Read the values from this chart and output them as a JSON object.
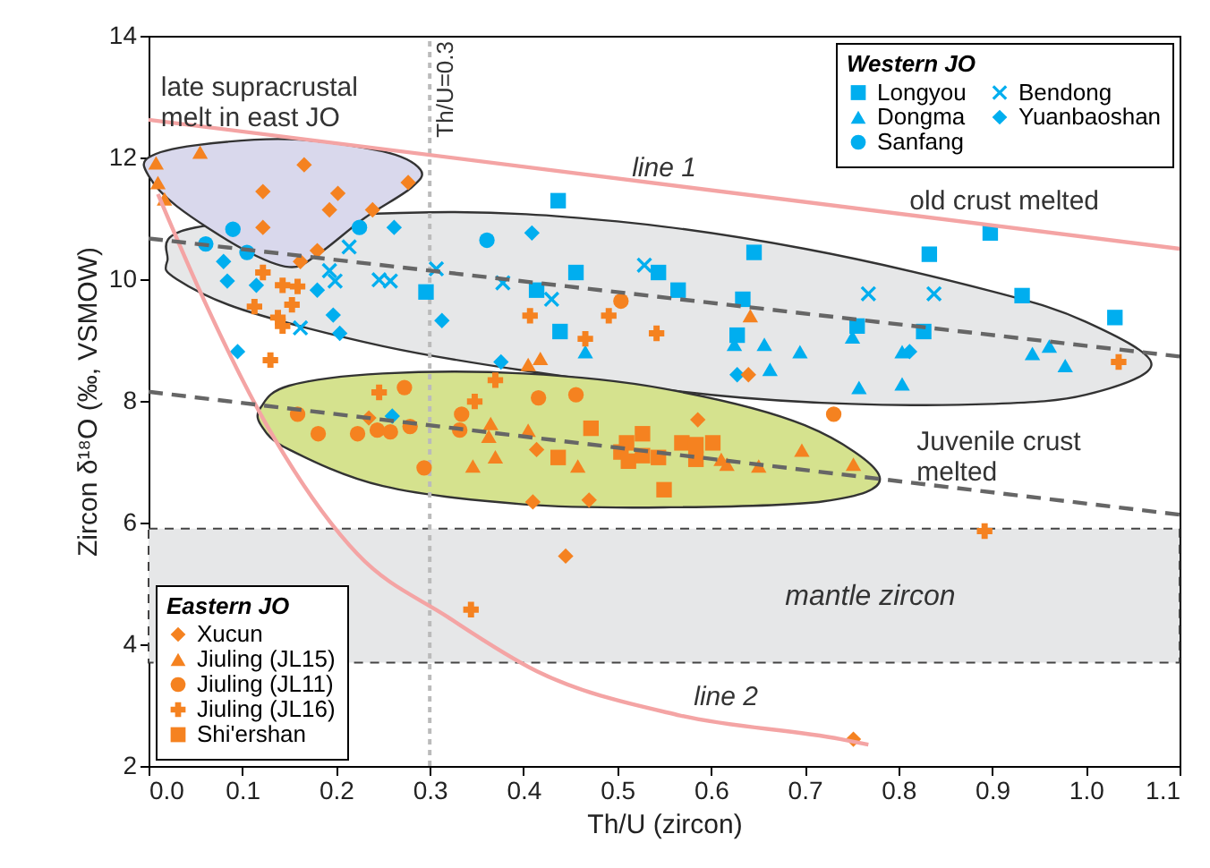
{
  "chart_data": {
    "type": "scatter",
    "xlabel": "Th/U (zircon)",
    "ylabel": "Zircon δ¹⁸O (‰, VSMOW)",
    "xlim": [
      0,
      1.1
    ],
    "xticks": [
      {
        "value": 0,
        "label": "0.0"
      },
      0.1,
      0.2,
      0.3,
      0.4,
      0.5,
      0.6,
      0.7,
      0.8,
      0.9,
      {
        "value": 1,
        "label": "1.0"
      },
      1.1
    ],
    "ylim": [
      2,
      14
    ],
    "yticks": [
      2,
      4,
      6,
      8,
      10,
      12,
      14
    ],
    "grid": false,
    "legend": [
      "top right",
      "bottom left"
    ],
    "legend_title": [
      "Western JO",
      "Eastern JO"
    ],
    "bands": [
      {
        "axis": "y",
        "from": 3.7,
        "to": 5.9,
        "label": "mantle zircon",
        "color": "#e6e7e8"
      }
    ],
    "ref_lines": [
      {
        "axis": "x",
        "value": 0.3,
        "label": "Th/U=0.3",
        "color": "#bbbbbb",
        "line_style": "dotted"
      }
    ],
    "annotations": [
      "late supracrustal\nmelt in east JO",
      "line 1",
      "old crust melted",
      "Juvenile crust\nmelted",
      "line 2"
    ],
    "series": [
      {
        "type": "area",
        "color": "#e6e7e8",
        "x": [
          0.05,
          0.3,
          0.5,
          0.7,
          0.9,
          1.0,
          1.07,
          1.0,
          0.9,
          0.75,
          0.6,
          0.4,
          0.25,
          0.1,
          0.03,
          0.02
        ],
        "values": [
          10.85,
          11.1,
          10.95,
          10.5,
          9.8,
          9.3,
          8.6,
          8.1,
          7.95,
          7.95,
          8.1,
          8.5,
          8.9,
          9.5,
          10.0,
          10.3
        ]
      },
      {
        "type": "area",
        "color": "#d9d8ec",
        "x": [
          0.0,
          0.05,
          0.15,
          0.25,
          0.29,
          0.28,
          0.23,
          0.18,
          0.15,
          0.1,
          0.03,
          0.0
        ],
        "values": [
          12.0,
          12.2,
          12.3,
          12.1,
          11.8,
          11.5,
          11.0,
          10.4,
          10.2,
          10.5,
          11.2,
          11.7
        ]
      },
      {
        "type": "area",
        "color": "#d5e28e",
        "x": [
          0.12,
          0.15,
          0.25,
          0.4,
          0.55,
          0.7,
          0.78,
          0.72,
          0.55,
          0.4,
          0.25,
          0.15,
          0.12
        ],
        "values": [
          7.9,
          8.25,
          8.45,
          8.45,
          8.2,
          7.6,
          6.75,
          6.35,
          6.25,
          6.3,
          6.6,
          7.2,
          7.6
        ]
      },
      {
        "type": "line",
        "color": "#f4a4a4",
        "line_style": "solid",
        "x": [
          0,
          1.1
        ],
        "values": [
          12.62,
          10.5
        ]
      },
      {
        "type": "line",
        "color": "#f4a4a4",
        "line_style": "solid",
        "x": [
          0.01,
          0.052,
          0.128,
          0.223,
          0.319,
          0.414,
          0.567,
          0.739,
          0.768
        ],
        "values": [
          11.4,
          9.9,
          7.55,
          5.48,
          4.45,
          3.56,
          2.83,
          2.44,
          2.35
        ]
      },
      {
        "type": "line",
        "color": "#666666",
        "line_style": "dashed",
        "x": [
          0,
          1.1
        ],
        "values": [
          10.67,
          8.73
        ]
      },
      {
        "type": "line",
        "color": "#666666",
        "line_style": "dashed",
        "x": [
          0,
          1.1
        ],
        "values": [
          8.15,
          6.13
        ]
      },
      {
        "name": "Longyou",
        "marker": "square",
        "color": "#00aeef",
        "x": [
          0.437,
          0.456,
          0.414,
          0.296,
          0.439,
          0.646,
          0.544,
          0.565,
          0.634,
          0.628,
          0.756,
          0.827,
          0.833,
          0.898,
          0.932,
          1.031
        ],
        "values": [
          11.29,
          10.11,
          9.82,
          9.79,
          9.14,
          10.44,
          10.11,
          9.82,
          9.67,
          9.08,
          9.23,
          9.14,
          10.41,
          10.76,
          9.73,
          9.37
        ]
      },
      {
        "name": "Dongma",
        "marker": "triangle",
        "color": "#00aeef",
        "x": [
          0.466,
          0.657,
          0.625,
          0.695,
          0.663,
          0.751,
          0.758,
          0.804,
          0.804,
          0.943,
          0.961,
          0.978
        ],
        "values": [
          8.81,
          8.93,
          8.93,
          8.81,
          8.52,
          9.05,
          8.22,
          8.28,
          8.81,
          8.78,
          8.9,
          8.58
        ]
      },
      {
        "name": "Sanfang",
        "marker": "circle",
        "color": "#00aeef",
        "x": [
          0.061,
          0.09,
          0.105,
          0.225,
          0.361
        ],
        "values": [
          10.58,
          10.82,
          10.44,
          10.85,
          10.64
        ]
      },
      {
        "name": "Bendong",
        "marker": "x",
        "color": "#00aeef",
        "x": [
          0.214,
          0.193,
          0.199,
          0.246,
          0.258,
          0.307,
          0.378,
          0.43,
          0.162,
          0.529,
          0.768,
          0.838
        ],
        "values": [
          10.53,
          10.14,
          9.97,
          9.99,
          9.97,
          10.17,
          9.94,
          9.67,
          9.2,
          10.23,
          9.76,
          9.76
        ]
      },
      {
        "name": "Yuanbaoshan",
        "marker": "diamond",
        "color": "#00aeef",
        "x": [
          0.262,
          0.409,
          0.08,
          0.084,
          0.115,
          0.18,
          0.197,
          0.204,
          0.313,
          0.095,
          0.376,
          0.26,
          0.628,
          0.812
        ],
        "values": [
          10.85,
          10.76,
          10.29,
          9.97,
          9.9,
          9.82,
          9.41,
          9.11,
          9.32,
          8.81,
          8.64,
          7.75,
          8.43,
          8.81
        ]
      },
      {
        "name": "Xucun",
        "marker": "diamond",
        "color": "#f58220",
        "x": [
          0.166,
          0.122,
          0.202,
          0.277,
          0.193,
          0.239,
          0.122,
          0.18,
          0.162,
          0.235,
          0.414,
          0.41,
          0.64,
          0.586,
          0.47,
          0.445,
          0.752
        ],
        "values": [
          11.88,
          11.44,
          11.41,
          11.59,
          11.14,
          11.14,
          10.85,
          10.47,
          10.29,
          7.72,
          7.2,
          6.34,
          8.43,
          7.69,
          6.37,
          5.45,
          2.44
        ]
      },
      {
        "name": "Jiuling (JL15)",
        "marker": "triangle",
        "color": "#f58220",
        "x": [
          0.055,
          0.008,
          0.01,
          0.017,
          0.405,
          0.418,
          0.365,
          0.363,
          0.405,
          0.37,
          0.346,
          0.458,
          0.642,
          0.611,
          0.651,
          0.697,
          0.752,
          0.617
        ],
        "values": [
          12.09,
          11.91,
          11.59,
          11.32,
          8.6,
          8.7,
          7.63,
          7.42,
          7.52,
          7.08,
          6.93,
          6.93,
          9.4,
          7.04,
          6.93,
          7.19,
          6.96,
          6.96
        ]
      },
      {
        "name": "Jiuling (JL11)",
        "marker": "circle",
        "color": "#f58220",
        "x": [
          0.273,
          0.159,
          0.181,
          0.223,
          0.244,
          0.258,
          0.279,
          0.294,
          0.334,
          0.332,
          0.416,
          0.456,
          0.504,
          0.731
        ],
        "values": [
          8.22,
          7.78,
          7.46,
          7.46,
          7.52,
          7.49,
          7.58,
          6.9,
          7.78,
          7.52,
          8.05,
          8.1,
          9.64,
          7.78
        ]
      },
      {
        "name": "Jiuling (JL16)",
        "marker": "cross",
        "color": "#f58220",
        "x": [
          0.122,
          0.143,
          0.159,
          0.113,
          0.153,
          0.138,
          0.143,
          0.13,
          0.246,
          0.348,
          0.37,
          0.407,
          0.466,
          0.491,
          0.542,
          1.035,
          0.892,
          0.344
        ],
        "values": [
          10.11,
          9.9,
          9.88,
          9.55,
          9.58,
          9.37,
          9.23,
          8.67,
          8.14,
          7.99,
          8.34,
          9.4,
          9.02,
          9.4,
          9.11,
          8.64,
          5.86,
          4.57
        ]
      },
      {
        "name": "Shi'ershan",
        "marker": "square",
        "color": "#f58220",
        "x": [
          0.472,
          0.51,
          0.527,
          0.504,
          0.512,
          0.527,
          0.544,
          0.569,
          0.584,
          0.602,
          0.584,
          0.437,
          0.55
        ],
        "values": [
          7.55,
          7.31,
          7.46,
          7.16,
          7.01,
          7.1,
          7.07,
          7.31,
          7.28,
          7.31,
          7.04,
          7.07,
          6.54
        ]
      }
    ]
  }
}
